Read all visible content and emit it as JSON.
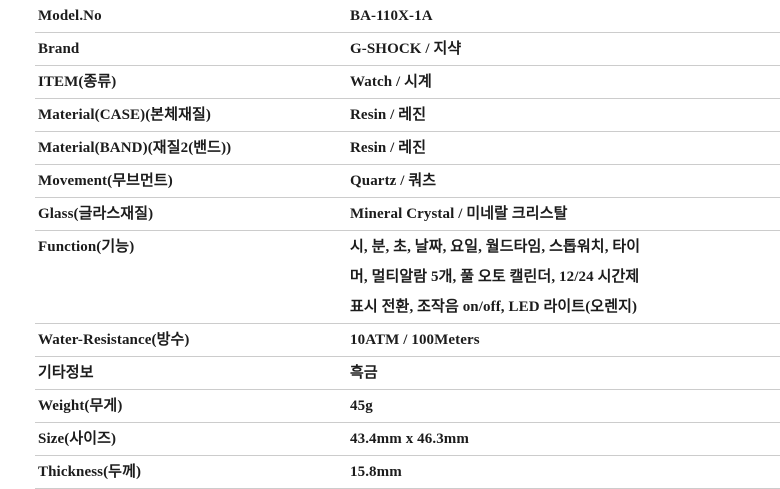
{
  "colors": {
    "background": "#ffffff",
    "separator_line": "#cccccc",
    "text": "#1c1c1c"
  },
  "spec_table": {
    "rows": [
      {
        "label": "Model.No",
        "value": "BA-110X-1A"
      },
      {
        "label": "Brand",
        "value": "G-SHOCK / 지샥"
      },
      {
        "label": "ITEM(종류)",
        "value": "Watch / 시계"
      },
      {
        "label": "Material(CASE)(본체재질)",
        "value": "Resin / 레진"
      },
      {
        "label": "Material(BAND)(재질2(밴드))",
        "value": "Resin / 레진"
      },
      {
        "label": "Movement(무브먼트)",
        "value": "Quartz / 쿼츠"
      },
      {
        "label": "Glass(글라스재질)",
        "value": "Mineral Crystal / 미네랄 크리스탈"
      },
      {
        "label": "Function(기능)",
        "value": "시, 분, 초, 날짜, 요일, 월드타임, 스톱워치, 타이\n머, 멀티알람 5개, 풀 오토 캘린더, 12/24 시간제\n표시 전환, 조작음 on/off, LED 라이트(오렌지)"
      },
      {
        "label": "Water-Resistance(방수)",
        "value": "10ATM / 100Meters"
      },
      {
        "label": "기타정보",
        "value": "흑금"
      },
      {
        "label": "Weight(무게)",
        "value": "45g"
      },
      {
        "label": "Size(사이즈)",
        "value": "43.4mm x 46.3mm"
      },
      {
        "label": "Thickness(두께)",
        "value": "15.8mm"
      }
    ]
  }
}
